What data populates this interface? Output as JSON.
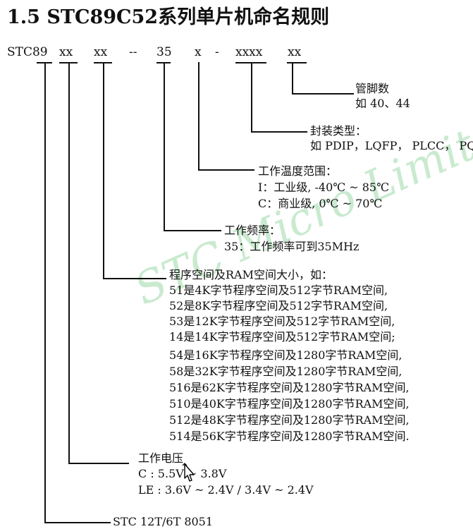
{
  "title": "1.5  STC89C52系列单片机命名规则",
  "code": {
    "prefix": "STC89",
    "seg1": "xx",
    "seg2": "xx",
    "dash1": "--",
    "speed": "35",
    "temp": "x",
    "dash2": "-",
    "package": "xxxx",
    "pins": "xx"
  },
  "pins": {
    "heading": "管脚数",
    "desc": "如 40、44"
  },
  "package": {
    "heading": "封装类型：",
    "desc": "如 PDIP，LQFP， PLCC， PQ"
  },
  "temperature": {
    "heading": "工作温度范围：",
    "industrial": "I：工业级, -40℃ ~ 85℃",
    "commercial": "C：商业级, 0℃ ~ 70℃"
  },
  "frequency": {
    "heading": "工作频率：",
    "desc": "35：工作频率可到35MHz"
  },
  "memory": {
    "heading": "程序空间及RAM空间大小，如：",
    "lines": [
      "51是4K字节程序空间及512字节RAM空间,",
      "52是8K字节程序空间及512字节RAM空间,",
      "53是12K字节程序空间及512字节RAM空间,",
      "14是14K字节程序空间及512字节RAM空间;",
      "54是16K字节程序空间及1280字节RAM空间,",
      "58是32K字节程序空间及1280字节RAM空间,",
      "516是62K字节程序空间及1280字节RAM空间,",
      "510是40K字节程序空间及1280字节RAM空间,",
      "512是48K字节程序空间及1280字节RAM空间,",
      "514是56K字节程序空间及1280字节RAM空间."
    ]
  },
  "voltage": {
    "heading": "工作电压",
    "c": "C   :  5.5V ~ 3.8V",
    "le": "LE :  3.6V ~ 2.4V / 3.4V ~ 2.4V"
  },
  "core": {
    "desc": "STC 12T/6T  8051"
  },
  "watermark": "STC Micro Limited",
  "colors": {
    "text": "#111111",
    "watermark": "#b7e3bf"
  }
}
